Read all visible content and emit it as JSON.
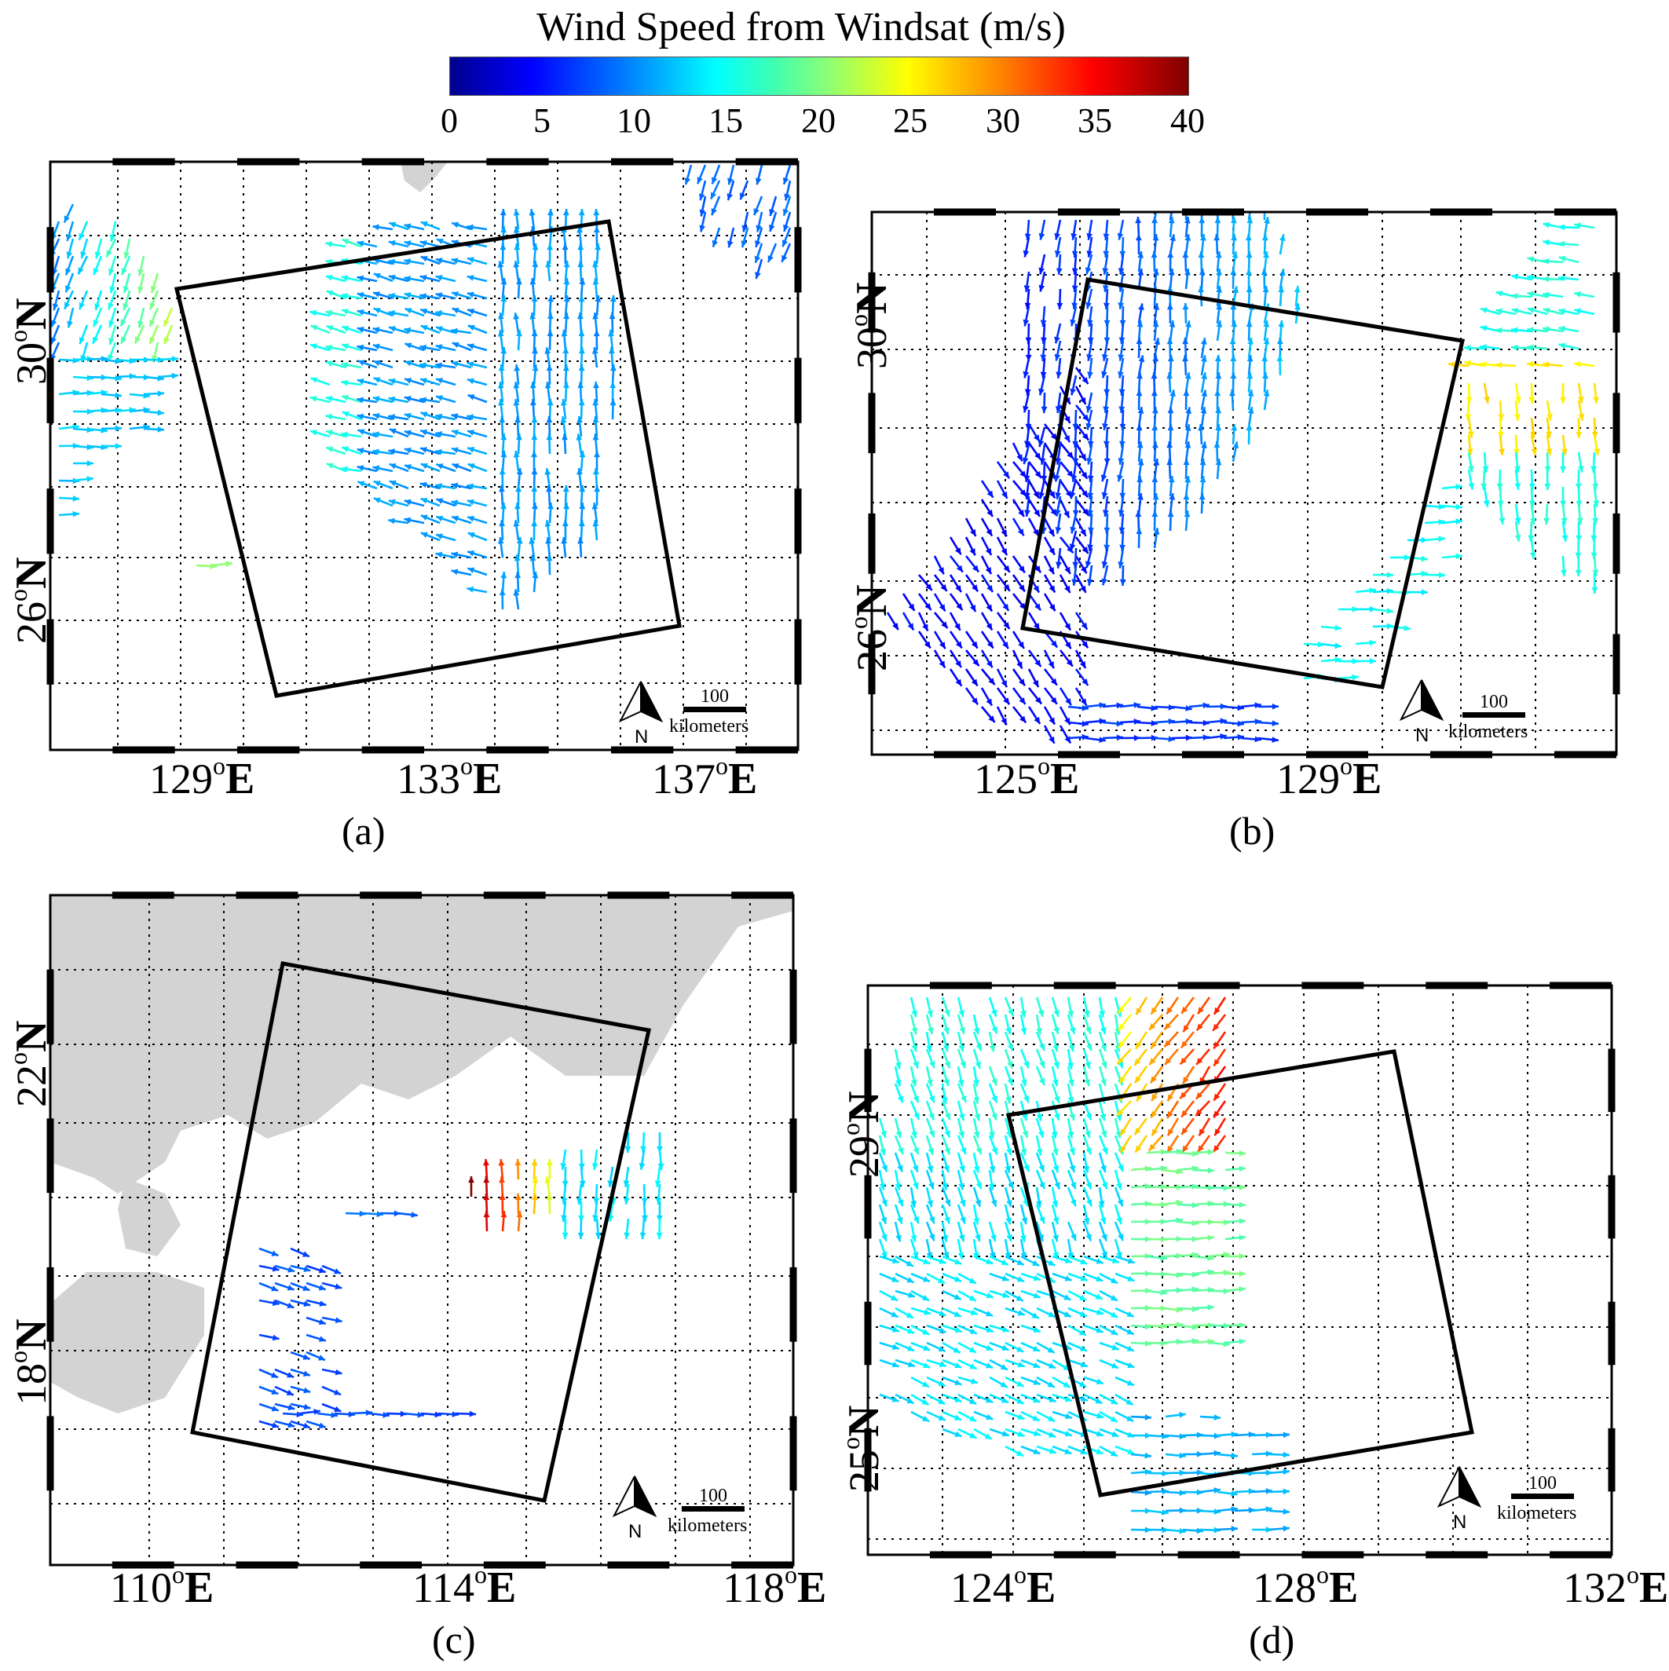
{
  "colorbar": {
    "title": "Wind Speed from Windsat (m/s)",
    "ticks": [
      "0",
      "5",
      "10",
      "15",
      "20",
      "25",
      "30",
      "35",
      "40"
    ],
    "range": [
      0,
      40
    ],
    "colormap": "jet"
  },
  "panels": [
    {
      "id": "a",
      "caption": "(a)",
      "lon_labels": [
        {
          "deg": "129",
          "hemi": "E"
        },
        {
          "deg": "133",
          "hemi": "E"
        },
        {
          "deg": "137",
          "hemi": "E"
        }
      ],
      "lat_labels": [
        {
          "deg": "30",
          "hemi": "N"
        },
        {
          "deg": "26",
          "hemi": "N"
        }
      ],
      "scale_bar": {
        "value": "100",
        "unit": "kilometers"
      },
      "north": "N",
      "land_color": "#d3d3d3",
      "frame_color": "#000000"
    },
    {
      "id": "b",
      "caption": "(b)",
      "lon_labels": [
        {
          "deg": "125",
          "hemi": "E"
        },
        {
          "deg": "129",
          "hemi": "E"
        }
      ],
      "lat_labels": [
        {
          "deg": "30",
          "hemi": "N"
        },
        {
          "deg": "26",
          "hemi": "N"
        }
      ],
      "scale_bar": {
        "value": "100",
        "unit": "kilometers"
      },
      "north": "N"
    },
    {
      "id": "c",
      "caption": "(c)",
      "lon_labels": [
        {
          "deg": "110",
          "hemi": "E"
        },
        {
          "deg": "114",
          "hemi": "E"
        },
        {
          "deg": "118",
          "hemi": "E"
        }
      ],
      "lat_labels": [
        {
          "deg": "22",
          "hemi": "N"
        },
        {
          "deg": "18",
          "hemi": "N"
        }
      ],
      "scale_bar": {
        "value": "100",
        "unit": "kilometers"
      },
      "north": "N"
    },
    {
      "id": "d",
      "caption": "(d)",
      "lon_labels": [
        {
          "deg": "124",
          "hemi": "E"
        },
        {
          "deg": "128",
          "hemi": "E"
        },
        {
          "deg": "132",
          "hemi": "E"
        }
      ],
      "lat_labels": [
        {
          "deg": "29",
          "hemi": "N"
        },
        {
          "deg": "25",
          "hemi": "N"
        }
      ],
      "scale_bar": {
        "value": "100",
        "unit": "kilometers"
      },
      "north": "N"
    }
  ]
}
